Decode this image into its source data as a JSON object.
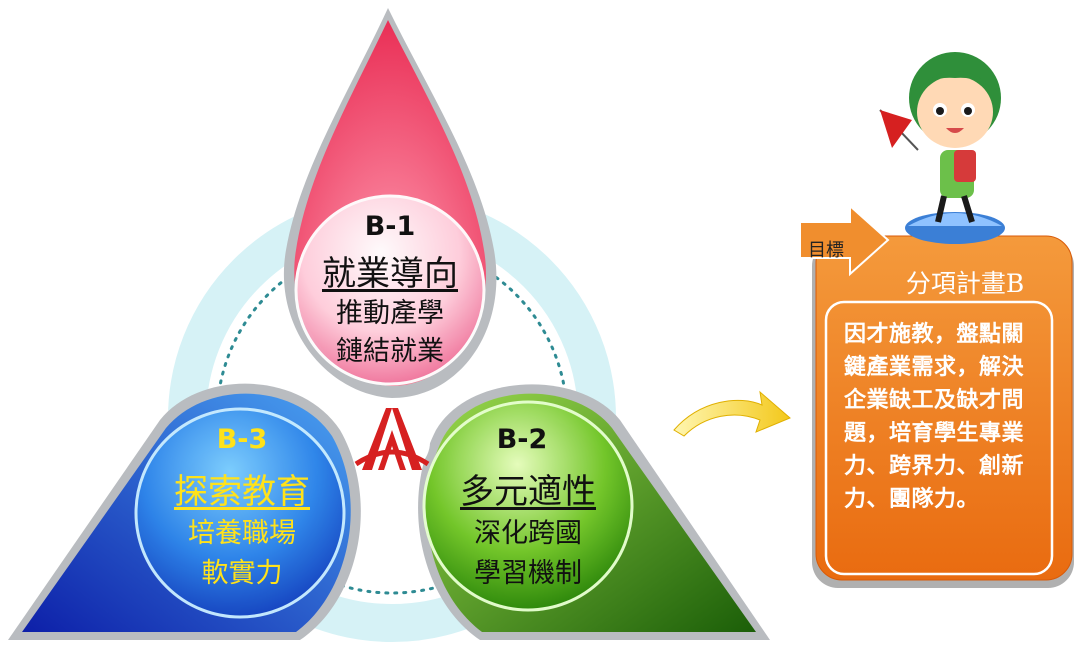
{
  "segments": [
    {
      "code": "B-1",
      "title": "就業導向",
      "lines": [
        "推動產學",
        "鏈結就業"
      ]
    },
    {
      "code": "B-2",
      "title": "多元適性",
      "lines": [
        "深化跨國",
        "學習機制"
      ]
    },
    {
      "code": "B-3",
      "title": "探索教育",
      "lines": [
        "培養職場",
        "軟實力"
      ]
    }
  ],
  "goal_box": {
    "tag": "目標",
    "title": "分項計畫B",
    "body": "因才施教，盤點關鍵產業需求，解決企業缺工及缺才問題，培育學生專業力、跨界力、創新力、團隊力。"
  },
  "colors": {
    "segment_1": "#f0496c",
    "segment_2": "#3d9a12",
    "segment_3": "#1f5fd6",
    "goal_box": "#ef7a1a",
    "arrow": "#f3c81b",
    "segment_3_text": "#ffe21a"
  },
  "icons": [
    "school-logo-icon",
    "curved-arrow-icon",
    "mascot-girl-icon"
  ]
}
